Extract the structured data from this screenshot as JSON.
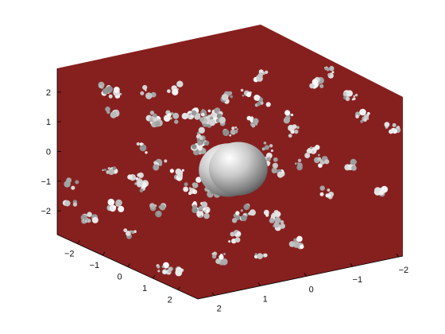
{
  "chart_data": {
    "type": "isosurface",
    "title": "",
    "box_color": "#86201f",
    "ticks": {
      "z": [
        2,
        1,
        0,
        -1,
        -2
      ],
      "x_front_left": [
        -2,
        -1,
        0,
        1,
        2
      ],
      "y_front_right": [
        2,
        1,
        0,
        -1,
        -2
      ]
    },
    "lim": [
      -2.8,
      2.8
    ],
    "spheres": [
      {
        "name": "",
        "center": [
          0.8,
          0.6,
          0.2
        ],
        "radius": 0.9
      },
      {
        "name": "",
        "center": [
          -0.4,
          -0.5,
          -0.5
        ],
        "radius": 0.9
      }
    ],
    "grid": false
  }
}
